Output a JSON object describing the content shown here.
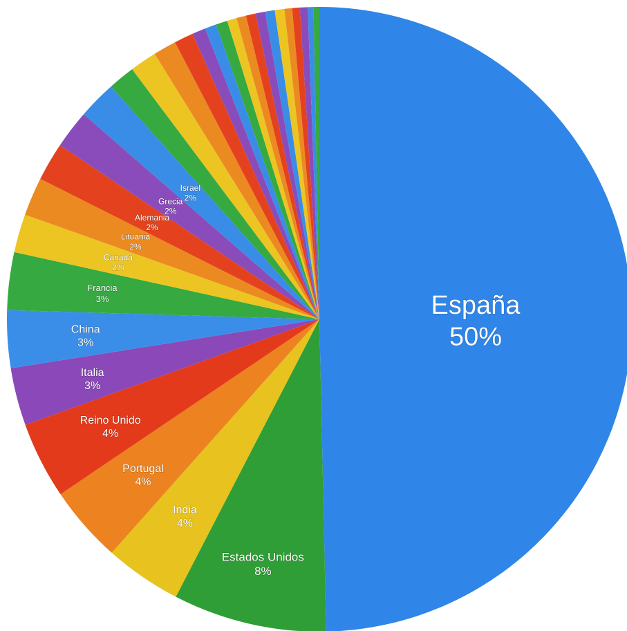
{
  "chart_data": {
    "type": "pie",
    "slices": [
      {
        "label": "España",
        "value": 50,
        "display": "50%",
        "color": "#2f86e8",
        "show_label": true
      },
      {
        "label": "Estados Unidos",
        "value": 8,
        "display": "8%",
        "color": "#2f9e36",
        "show_label": true
      },
      {
        "label": "India",
        "value": 4,
        "display": "4%",
        "color": "#e8c21e",
        "show_label": true
      },
      {
        "label": "Portugal",
        "value": 4,
        "display": "4%",
        "color": "#ec8320",
        "show_label": true
      },
      {
        "label": "Reino Unido",
        "value": 4,
        "display": "4%",
        "color": "#e43a1c",
        "show_label": true
      },
      {
        "label": "Italia",
        "value": 3,
        "display": "3%",
        "color": "#8a48b8",
        "show_label": true
      },
      {
        "label": "China",
        "value": 3,
        "display": "3%",
        "color": "#3b8ee8",
        "show_label": true
      },
      {
        "label": "Francia",
        "value": 3,
        "display": "3%",
        "color": "#36a940",
        "show_label": true
      },
      {
        "label": "Canadá",
        "value": 2,
        "display": "2%",
        "color": "#ecc523",
        "show_label": true
      },
      {
        "label": "Lituania",
        "value": 2,
        "display": "2%",
        "color": "#ec8a22",
        "show_label": true
      },
      {
        "label": "Alemania",
        "value": 2,
        "display": "2%",
        "color": "#e4421e",
        "show_label": true
      },
      {
        "label": "Grecia",
        "value": 2,
        "display": "2%",
        "color": "#8a4cba",
        "show_label": true
      },
      {
        "label": "Israel",
        "value": 2,
        "display": "2%",
        "color": "#3a8de6",
        "show_label": true
      },
      {
        "label": "",
        "value": 1.4,
        "display": "",
        "color": "#36a940",
        "show_label": false
      },
      {
        "label": "",
        "value": 1.4,
        "display": "",
        "color": "#ecc523",
        "show_label": false
      },
      {
        "label": "",
        "value": 1.2,
        "display": "",
        "color": "#ec8a22",
        "show_label": false
      },
      {
        "label": "",
        "value": 1.0,
        "display": "",
        "color": "#e4421e",
        "show_label": false
      },
      {
        "label": "",
        "value": 0.7,
        "display": "",
        "color": "#8a4cba",
        "show_label": false
      },
      {
        "label": "",
        "value": 0.6,
        "display": "",
        "color": "#3a8de6",
        "show_label": false
      },
      {
        "label": "",
        "value": 0.6,
        "display": "",
        "color": "#36a940",
        "show_label": false
      },
      {
        "label": "",
        "value": 0.5,
        "display": "",
        "color": "#ecc523",
        "show_label": false
      },
      {
        "label": "",
        "value": 0.5,
        "display": "",
        "color": "#ec8a22",
        "show_label": false
      },
      {
        "label": "",
        "value": 0.5,
        "display": "",
        "color": "#e4421e",
        "show_label": false
      },
      {
        "label": "",
        "value": 0.5,
        "display": "",
        "color": "#8a4cba",
        "show_label": false
      },
      {
        "label": "",
        "value": 0.5,
        "display": "",
        "color": "#3a8de6",
        "show_label": false
      },
      {
        "label": "",
        "value": 0.5,
        "display": "",
        "color": "#ecc523",
        "show_label": false
      },
      {
        "label": "",
        "value": 0.4,
        "display": "",
        "color": "#ec8a22",
        "show_label": false
      },
      {
        "label": "",
        "value": 0.4,
        "display": "",
        "color": "#e4421e",
        "show_label": false
      },
      {
        "label": "",
        "value": 0.4,
        "display": "",
        "color": "#8a4cba",
        "show_label": false
      },
      {
        "label": "",
        "value": 0.3,
        "display": "",
        "color": "#3a8de6",
        "show_label": false
      },
      {
        "label": "",
        "value": 0.3,
        "display": "",
        "color": "#36a940",
        "show_label": false
      }
    ],
    "start_angle_deg": 0,
    "direction": "clockwise",
    "legend": "none"
  }
}
